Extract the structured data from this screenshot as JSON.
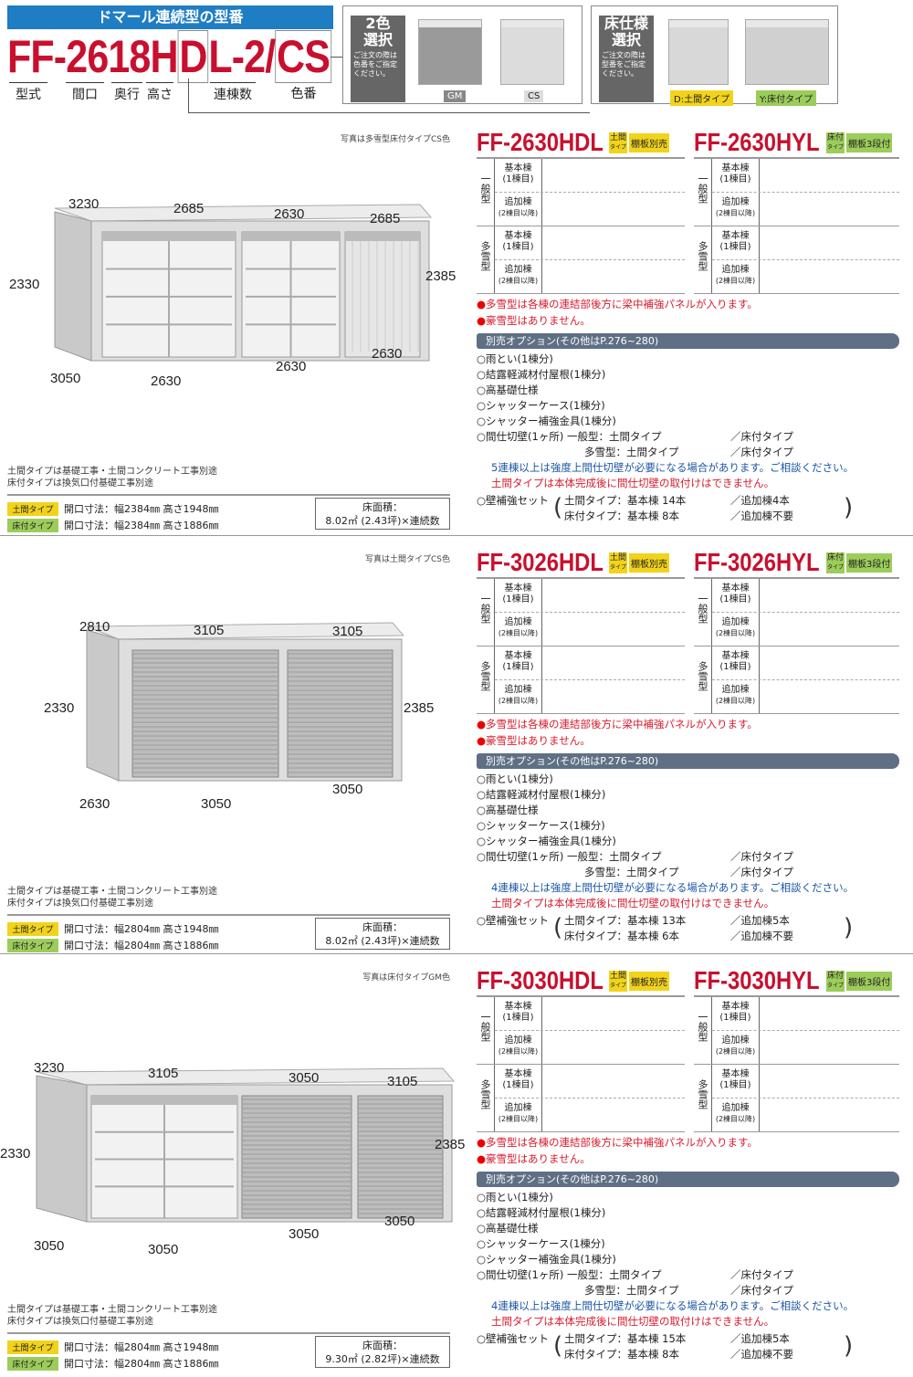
{
  "header": {
    "banner": "ドマール連続型の型番",
    "code": {
      "part1": "FF-2618H",
      "part2": "D",
      "part3": "L-2/",
      "part4": "CS"
    },
    "labels": {
      "model": "型式",
      "width": "間口",
      "depth": "奥行",
      "height": "高さ",
      "units": "連棟数",
      "color": "色番"
    },
    "color_box": {
      "title1": "2色",
      "title2": "選択",
      "note": "ご注文の際は色番をご指定ください。",
      "options": [
        "GM",
        "CS"
      ]
    },
    "floor_box": {
      "title1": "床仕様",
      "title2": "選択",
      "note": "ご注文の際は型番をご指定ください。",
      "options": [
        "D:土間タイプ",
        "Y:床付タイプ"
      ]
    }
  },
  "table": {
    "groups": [
      "一般型",
      "多雪型"
    ],
    "basic": "基本棟",
    "basic_sub": "(1棟目)",
    "added": "追加棟",
    "added_sub": "(2棟目以降)"
  },
  "common": {
    "snow_note": "多雪型は各棟の連結部後方に梁中補強パネルが入ります。",
    "heavy_note": "豪雪型はありません。",
    "option_header": "別売オプション(その他はP.276~280)",
    "options": [
      "○雨とい(1棟分)",
      "○結露軽減材付屋根(1棟分)",
      "○高基礎仕様",
      "○シャッターケース(1棟分)",
      "○シャッター補強金具(1棟分)"
    ],
    "partition": {
      "label": "○間仕切壁(1ヶ所) 一般型：土間タイプ",
      "label_floor": "／床付タイプ",
      "snow": "多雪型：土間タイプ",
      "snow_floor": "／床付タイプ"
    },
    "red_note": "土間タイプは本体完成後に間仕切壁の取付けはできません。",
    "wall_label": "○壁補強セット",
    "foundation_notes": [
      "土間タイプは基礎工事・土間コンクリート工事別途",
      "床付タイプは換気口付基礎工事別途"
    ],
    "type_labels": [
      "土間タイプ",
      "床付タイプ"
    ],
    "area_label": "床面積：",
    "model_types": [
      {
        "top": "土間",
        "bottom": "タイプ"
      },
      {
        "top": "床付",
        "bottom": "タイプ"
      }
    ]
  },
  "sections": [
    {
      "caption": "写真は多雪型床付タイプCS色",
      "dims": [
        "3230",
        "2685",
        "2630",
        "2685",
        "2330",
        "2385",
        "3050",
        "2630",
        "2630",
        "2630"
      ],
      "openings": [
        "開口寸法：幅2384㎜ 高さ1948㎜",
        "開口寸法：幅2384㎜ 高さ1886㎜"
      ],
      "area": "8.02㎡ (2.43坪)×連続数",
      "models": [
        {
          "code": "FF-2630HDL",
          "badge": "棚板別売"
        },
        {
          "code": "FF-2630HYL",
          "badge": "棚板3段付"
        }
      ],
      "blue_note": "5連棟以上は強度上間仕切壁が必要になる場合があります。ご相談ください。",
      "wall": {
        "doma": "土間タイプ：基本棟 14本",
        "doma_add": "／追加棟4本",
        "floor": "床付タイプ：基本棟  8本",
        "floor_add": "／追加棟不要"
      }
    },
    {
      "caption": "写真は土間タイプCS色",
      "dims": [
        "2810",
        "3105",
        "3105",
        "2330",
        "2385",
        "2630",
        "3050",
        "3050"
      ],
      "openings": [
        "開口寸法：幅2804㎜ 高さ1948㎜",
        "開口寸法：幅2804㎜ 高さ1886㎜"
      ],
      "area": "8.02㎡ (2.43坪)×連続数",
      "models": [
        {
          "code": "FF-3026HDL",
          "badge": "棚板別売"
        },
        {
          "code": "FF-3026HYL",
          "badge": "棚板3段付"
        }
      ],
      "blue_note": "4連棟以上は強度上間仕切壁が必要になる場合があります。ご相談ください。",
      "wall": {
        "doma": "土間タイプ：基本棟 13本",
        "doma_add": "／追加棟5本",
        "floor": "床付タイプ：基本棟  6本",
        "floor_add": "／追加棟不要"
      }
    },
    {
      "caption": "写真は床付タイプGM色",
      "dims": [
        "3230",
        "3105",
        "3050",
        "3105",
        "2330",
        "2385",
        "3050",
        "3050",
        "3050",
        "3050"
      ],
      "openings": [
        "開口寸法：幅2804㎜ 高さ1948㎜",
        "開口寸法：幅2804㎜ 高さ1886㎜"
      ],
      "area": "9.30㎡ (2.82坪)×連続数",
      "models": [
        {
          "code": "FF-3030HDL",
          "badge": "棚板別売"
        },
        {
          "code": "FF-3030HYL",
          "badge": "棚板3段付"
        }
      ],
      "blue_note": "4連棟以上は強度上間仕切壁が必要になる場合があります。ご相談ください。",
      "wall": {
        "doma": "土間タイプ：基本棟 15本",
        "doma_add": "／追加棟5本",
        "floor": "床付タイプ：基本棟  8本",
        "floor_add": "／追加棟不要"
      }
    }
  ],
  "colors": {
    "red": "#c8102e",
    "banner": "#1f7dc4",
    "doma_badge": "#f2d31b",
    "floor_badge": "#9ccc5a",
    "option_bar": "#5f7085",
    "blue_note": "#1b56a6"
  }
}
